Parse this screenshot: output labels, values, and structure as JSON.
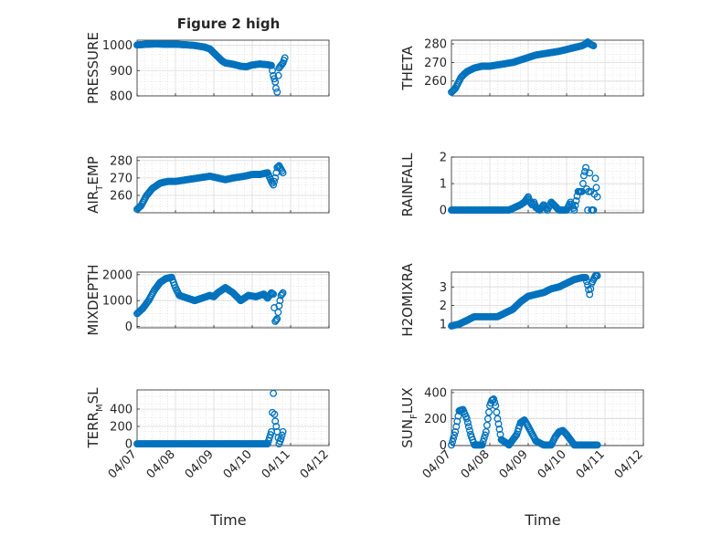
{
  "figure": {
    "title": "Figure 2 high",
    "xlabel": "Time",
    "x_ticks": [
      "04/07",
      "04/08",
      "04/09",
      "04/10",
      "04/11",
      "04/12"
    ],
    "marker_color": "#0072BD"
  },
  "chart_data": [
    {
      "type": "scatter",
      "ylabel": "PRESSURE",
      "ylim": [
        800,
        1020
      ],
      "y_ticks": [
        800,
        900,
        1000
      ],
      "xlim": [
        0,
        5
      ],
      "grid": true,
      "series": [
        {
          "x": [
            0.0,
            0.25,
            0.5,
            0.75,
            1.0,
            1.25,
            1.5,
            1.75,
            1.9,
            2.0,
            2.1,
            2.2,
            2.3,
            2.5,
            2.7,
            2.85,
            3.0,
            3.2,
            3.4,
            3.5,
            3.55,
            3.6,
            3.62,
            3.65,
            3.68,
            3.7,
            3.75,
            3.8,
            3.85
          ],
          "y": [
            1001,
            1004,
            1005,
            1004,
            1004,
            1002,
            999,
            993,
            985,
            970,
            955,
            940,
            930,
            925,
            917,
            915,
            922,
            926,
            923,
            920,
            880,
            855,
            830,
            815,
            880,
            910,
            920,
            930,
            950
          ]
        }
      ]
    },
    {
      "type": "scatter",
      "ylabel": "THETA",
      "ylim": [
        252,
        282
      ],
      "y_ticks": [
        260,
        270,
        280
      ],
      "xlim": [
        0,
        5
      ],
      "grid": true,
      "series": [
        {
          "x": [
            0.0,
            0.1,
            0.25,
            0.4,
            0.6,
            0.8,
            1.0,
            1.3,
            1.6,
            1.9,
            2.2,
            2.5,
            2.8,
            3.0,
            3.2,
            3.4,
            3.5,
            3.55,
            3.6,
            3.7
          ],
          "y": [
            254,
            256,
            262,
            265,
            267,
            268,
            268,
            269,
            270,
            272,
            274,
            275,
            276,
            277,
            278,
            279,
            280,
            281,
            280,
            279
          ]
        }
      ]
    },
    {
      "type": "scatter",
      "ylabel": "AIR_TEMP",
      "ylim": [
        250,
        282
      ],
      "y_ticks": [
        260,
        270,
        280
      ],
      "xlim": [
        0,
        5
      ],
      "grid": true,
      "series": [
        {
          "x": [
            0.0,
            0.1,
            0.25,
            0.4,
            0.6,
            0.8,
            1.0,
            1.3,
            1.6,
            1.9,
            2.1,
            2.3,
            2.5,
            2.8,
            3.0,
            3.2,
            3.4,
            3.5,
            3.55,
            3.6,
            3.65,
            3.7,
            3.75,
            3.8
          ],
          "y": [
            252,
            254,
            260,
            264,
            267,
            268,
            268,
            269,
            270,
            271,
            270,
            269,
            270,
            271,
            272,
            272,
            273,
            268,
            266,
            270,
            276,
            277,
            275,
            273
          ]
        }
      ]
    },
    {
      "type": "scatter",
      "ylabel": "RAINFALL",
      "ylim": [
        -0.1,
        2.0
      ],
      "y_ticks": [
        0,
        1,
        2
      ],
      "xlim": [
        0,
        5
      ],
      "grid": true,
      "series": [
        {
          "x": [
            0.0,
            0.5,
            1.0,
            1.5,
            1.8,
            1.9,
            2.0,
            2.05,
            2.1,
            2.15,
            2.2,
            2.3,
            2.4,
            2.5,
            2.6,
            2.8,
            3.0,
            3.1,
            3.2,
            3.3,
            3.4,
            3.45,
            3.5,
            3.55,
            3.6,
            3.65,
            3.7,
            3.75,
            3.8
          ],
          "y": [
            0,
            0,
            0,
            0,
            0.2,
            0.3,
            0.5,
            0.3,
            0.2,
            0.3,
            0.1,
            0.0,
            0.2,
            0.0,
            0.3,
            0.0,
            0.0,
            0.3,
            0.0,
            0.7,
            0.7,
            1.3,
            1.6,
            0.0,
            1.4,
            0.0,
            0.0,
            1.2,
            0.5
          ]
        }
      ]
    },
    {
      "type": "scatter",
      "ylabel": "MIXDEPTH",
      "ylim": [
        -50,
        2100
      ],
      "y_ticks": [
        0,
        1000,
        2000
      ],
      "xlim": [
        0,
        5
      ],
      "grid": true,
      "series": [
        {
          "x": [
            0.0,
            0.15,
            0.3,
            0.45,
            0.6,
            0.75,
            0.9,
            1.0,
            1.1,
            1.3,
            1.5,
            1.7,
            1.9,
            2.0,
            2.1,
            2.3,
            2.5,
            2.7,
            2.9,
            3.1,
            3.3,
            3.4,
            3.5,
            3.55,
            3.6,
            3.65,
            3.7,
            3.75,
            3.8
          ],
          "y": [
            500,
            700,
            1000,
            1400,
            1700,
            1850,
            1900,
            1500,
            1200,
            1100,
            1000,
            1100,
            1200,
            1150,
            1300,
            1500,
            1300,
            1000,
            1200,
            1150,
            1250,
            1100,
            1300,
            1250,
            200,
            300,
            800,
            1200,
            1300
          ]
        }
      ]
    },
    {
      "type": "scatter",
      "ylabel": "H2OMIXRA",
      "ylim": [
        0.8,
        3.8
      ],
      "y_ticks": [
        1,
        2,
        3
      ],
      "xlim": [
        0,
        5
      ],
      "grid": true,
      "series": [
        {
          "x": [
            0.0,
            0.2,
            0.4,
            0.6,
            0.8,
            1.0,
            1.2,
            1.4,
            1.6,
            1.8,
            2.0,
            2.2,
            2.4,
            2.6,
            2.8,
            3.0,
            3.2,
            3.4,
            3.5,
            3.55,
            3.6,
            3.65,
            3.7,
            3.75,
            3.8
          ],
          "y": [
            0.9,
            1.0,
            1.2,
            1.4,
            1.4,
            1.4,
            1.4,
            1.6,
            1.8,
            2.2,
            2.5,
            2.6,
            2.7,
            2.9,
            3.0,
            3.2,
            3.4,
            3.5,
            3.5,
            3.1,
            2.6,
            3.2,
            3.4,
            3.6,
            3.6
          ]
        }
      ]
    },
    {
      "type": "scatter",
      "ylabel": "TERR_MSL",
      "ylim": [
        -20,
        620
      ],
      "y_ticks": [
        0,
        200,
        400
      ],
      "xlim": [
        0,
        5
      ],
      "grid": true,
      "series": [
        {
          "x": [
            0.0,
            0.5,
            1.0,
            1.5,
            2.0,
            2.5,
            3.0,
            3.4,
            3.5,
            3.55,
            3.58,
            3.6,
            3.65,
            3.7,
            3.75,
            3.8
          ],
          "y": [
            0,
            0,
            0,
            0,
            0,
            0,
            0,
            0,
            140,
            580,
            340,
            260,
            140,
            0,
            60,
            140
          ]
        }
      ]
    },
    {
      "type": "scatter",
      "ylabel": "SUN_FLUX",
      "ylim": [
        -5,
        420
      ],
      "y_ticks": [
        0,
        200,
        400
      ],
      "xlim": [
        0,
        5
      ],
      "grid": true,
      "series": [
        {
          "x": [
            0.0,
            0.1,
            0.2,
            0.3,
            0.4,
            0.5,
            0.6,
            0.8,
            0.9,
            1.0,
            1.05,
            1.1,
            1.15,
            1.2,
            1.3,
            1.5,
            1.7,
            1.8,
            1.9,
            2.0,
            2.2,
            2.4,
            2.6,
            2.7,
            2.8,
            2.9,
            3.0,
            3.2,
            3.4,
            3.5,
            3.6,
            3.7,
            3.8
          ],
          "y": [
            0,
            100,
            260,
            270,
            200,
            80,
            0,
            0,
            100,
            300,
            340,
            350,
            300,
            200,
            40,
            0,
            80,
            170,
            190,
            140,
            30,
            0,
            0,
            60,
            100,
            110,
            80,
            0,
            0,
            0,
            0,
            0,
            0
          ]
        }
      ]
    }
  ]
}
